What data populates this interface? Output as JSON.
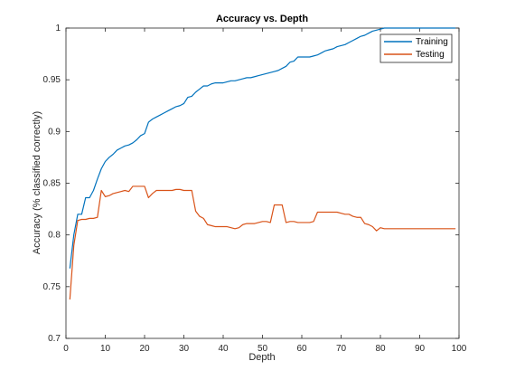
{
  "chart_data": {
    "type": "line",
    "title": "Accuracy vs. Depth",
    "xlabel": "Depth",
    "ylabel": "Accuracy (% classified correctly)",
    "xlim": [
      0,
      100
    ],
    "ylim": [
      0.7,
      1
    ],
    "xticks": [
      0,
      10,
      20,
      30,
      40,
      50,
      60,
      70,
      80,
      90,
      100
    ],
    "yticks": [
      0.7,
      0.75,
      0.8,
      0.85,
      0.9,
      0.95,
      1
    ],
    "xtick_labels": [
      "0",
      "10",
      "20",
      "30",
      "40",
      "50",
      "60",
      "70",
      "80",
      "90",
      "100"
    ],
    "ytick_labels": [
      "0.7",
      "0.75",
      "0.8",
      "0.85",
      "0.9",
      "0.95",
      "1"
    ],
    "grid": false,
    "legend_position": "top-right",
    "x": [
      1,
      2,
      3,
      4,
      5,
      6,
      7,
      8,
      9,
      10,
      11,
      12,
      13,
      14,
      15,
      16,
      17,
      18,
      19,
      20,
      21,
      22,
      23,
      24,
      25,
      26,
      27,
      28,
      29,
      30,
      31,
      32,
      33,
      34,
      35,
      36,
      37,
      38,
      39,
      40,
      41,
      42,
      43,
      44,
      45,
      46,
      47,
      48,
      49,
      50,
      51,
      52,
      53,
      54,
      55,
      56,
      57,
      58,
      59,
      60,
      61,
      62,
      63,
      64,
      65,
      66,
      67,
      68,
      69,
      70,
      71,
      72,
      73,
      74,
      75,
      76,
      77,
      78,
      79,
      80,
      81,
      82,
      83,
      84,
      85,
      86,
      87,
      88,
      89,
      90,
      91,
      92,
      93,
      94,
      95,
      96,
      97,
      98,
      99
    ],
    "series": [
      {
        "name": "Training",
        "color": "#0072bd",
        "values": [
          0.768,
          0.8,
          0.82,
          0.82,
          0.836,
          0.836,
          0.843,
          0.854,
          0.864,
          0.871,
          0.875,
          0.878,
          0.882,
          0.884,
          0.886,
          0.887,
          0.889,
          0.892,
          0.896,
          0.898,
          0.909,
          0.912,
          0.914,
          0.916,
          0.918,
          0.92,
          0.922,
          0.924,
          0.925,
          0.927,
          0.933,
          0.934,
          0.938,
          0.941,
          0.944,
          0.944,
          0.946,
          0.947,
          0.947,
          0.947,
          0.948,
          0.949,
          0.949,
          0.95,
          0.951,
          0.952,
          0.952,
          0.953,
          0.954,
          0.955,
          0.956,
          0.957,
          0.958,
          0.959,
          0.961,
          0.963,
          0.967,
          0.968,
          0.972,
          0.972,
          0.972,
          0.972,
          0.973,
          0.974,
          0.976,
          0.978,
          0.979,
          0.98,
          0.982,
          0.983,
          0.984,
          0.986,
          0.988,
          0.99,
          0.992,
          0.993,
          0.995,
          0.997,
          0.998,
          0.999,
          1.0,
          1.0,
          1.0,
          1.0,
          1.0,
          1.0,
          1.0,
          1.0,
          1.0,
          1.0,
          1.0,
          1.0,
          1.0,
          1.0,
          1.0,
          1.0,
          1.0,
          1.0,
          1.0
        ]
      },
      {
        "name": "Testing",
        "color": "#d95319",
        "values": [
          0.738,
          0.79,
          0.814,
          0.815,
          0.815,
          0.816,
          0.816,
          0.817,
          0.843,
          0.837,
          0.838,
          0.84,
          0.841,
          0.842,
          0.843,
          0.842,
          0.847,
          0.847,
          0.847,
          0.847,
          0.836,
          0.84,
          0.843,
          0.843,
          0.843,
          0.843,
          0.843,
          0.844,
          0.844,
          0.843,
          0.843,
          0.843,
          0.823,
          0.818,
          0.816,
          0.81,
          0.809,
          0.808,
          0.808,
          0.808,
          0.808,
          0.807,
          0.806,
          0.807,
          0.81,
          0.811,
          0.811,
          0.811,
          0.812,
          0.813,
          0.813,
          0.812,
          0.829,
          0.829,
          0.829,
          0.812,
          0.813,
          0.813,
          0.812,
          0.812,
          0.812,
          0.812,
          0.813,
          0.822,
          0.822,
          0.822,
          0.822,
          0.822,
          0.822,
          0.821,
          0.82,
          0.82,
          0.818,
          0.817,
          0.817,
          0.811,
          0.81,
          0.808,
          0.804,
          0.807,
          0.806,
          0.806,
          0.806,
          0.806,
          0.806,
          0.806,
          0.806,
          0.806,
          0.806,
          0.806,
          0.806,
          0.806,
          0.806,
          0.806,
          0.806,
          0.806,
          0.806,
          0.806,
          0.806
        ]
      }
    ]
  }
}
